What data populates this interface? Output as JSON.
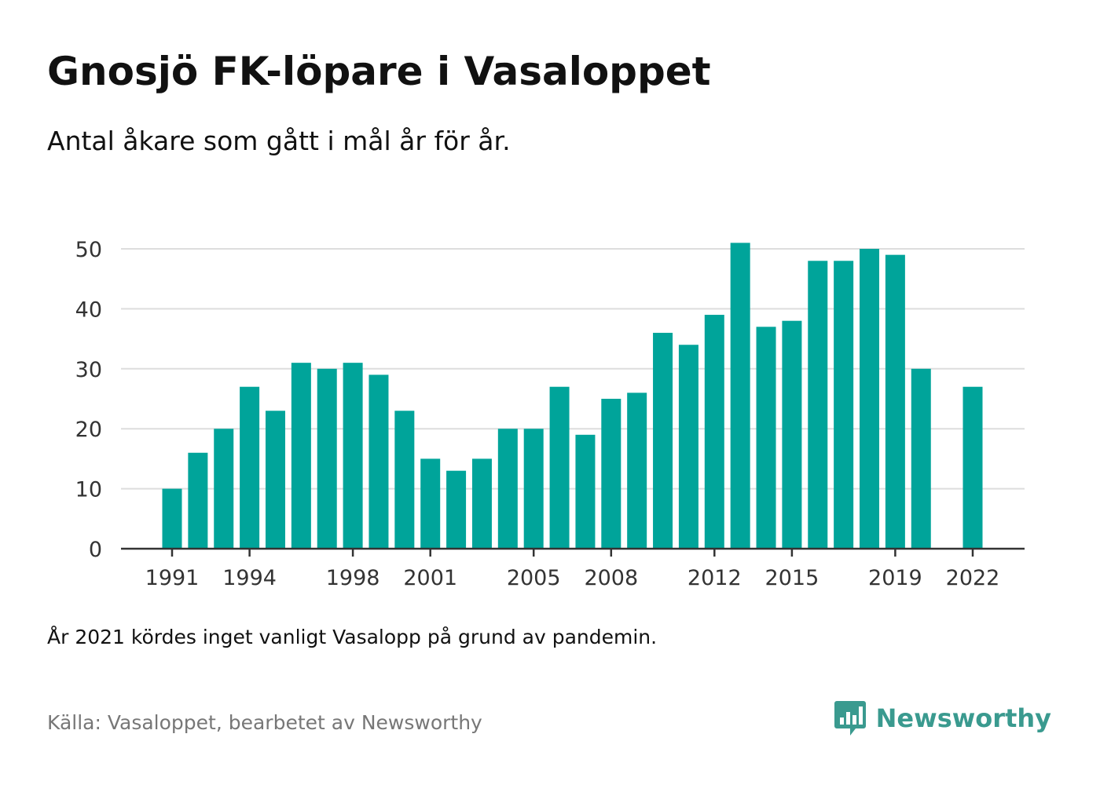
{
  "header": {
    "title": "Gnosjö FK-löpare i Vasaloppet",
    "subtitle": "Antal åkare som gått i mål år för år."
  },
  "footer": {
    "note": "År 2021 kördes inget vanligt Vasalopp på grund av pandemin.",
    "source": "Källa: Vasaloppet, bearbetet av Newsworthy",
    "brand": "Newsworthy"
  },
  "colors": {
    "bar": "#00A49A",
    "brand": "#3A9A8F",
    "grid": "#DDDDDD",
    "axis": "#333333"
  },
  "icons": {
    "brand_logo": "newsworthy-logo-icon"
  },
  "chart_data": {
    "type": "bar",
    "title": "Gnosjö FK-löpare i Vasaloppet",
    "subtitle": "Antal åkare som gått i mål år för år.",
    "xlabel": "",
    "ylabel": "",
    "categories": [
      1991,
      1992,
      1993,
      1994,
      1995,
      1996,
      1997,
      1998,
      1999,
      2000,
      2001,
      2002,
      2003,
      2004,
      2005,
      2006,
      2007,
      2008,
      2009,
      2010,
      2011,
      2012,
      2013,
      2014,
      2015,
      2016,
      2017,
      2018,
      2019,
      2020,
      2021,
      2022
    ],
    "values": [
      10,
      16,
      20,
      27,
      23,
      31,
      30,
      31,
      29,
      23,
      15,
      13,
      15,
      20,
      20,
      27,
      19,
      25,
      26,
      36,
      34,
      39,
      51,
      37,
      38,
      48,
      48,
      50,
      49,
      30,
      null,
      27
    ],
    "ylim": [
      0,
      50
    ],
    "yticks": [
      0,
      10,
      20,
      30,
      40,
      50
    ],
    "xtick_labels": [
      "1991",
      "1994",
      "1998",
      "2001",
      "2005",
      "2008",
      "2012",
      "2015",
      "2019",
      "2022"
    ],
    "grid": "horizontal",
    "legend": "none"
  }
}
